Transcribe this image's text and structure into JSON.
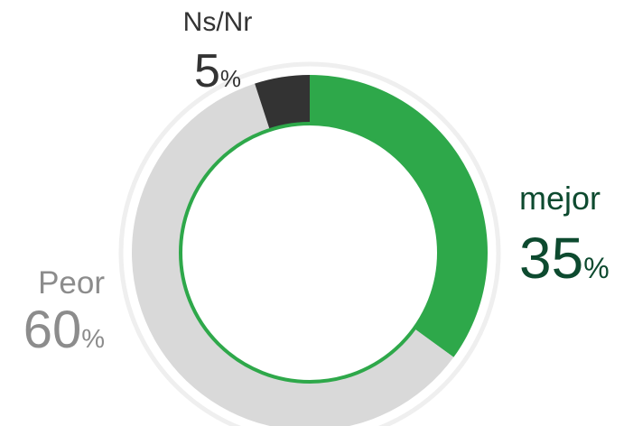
{
  "chart_data": {
    "type": "donut",
    "categories": [
      "mejor",
      "Peor",
      "Ns/Nr"
    ],
    "values": [
      35,
      60,
      5
    ],
    "unit": "%",
    "colors": [
      "#2ea84a",
      "#d9d9d9",
      "#333333"
    ],
    "label_colors": [
      "#0d4a2f",
      "#8c8c8c",
      "#333333"
    ]
  }
}
